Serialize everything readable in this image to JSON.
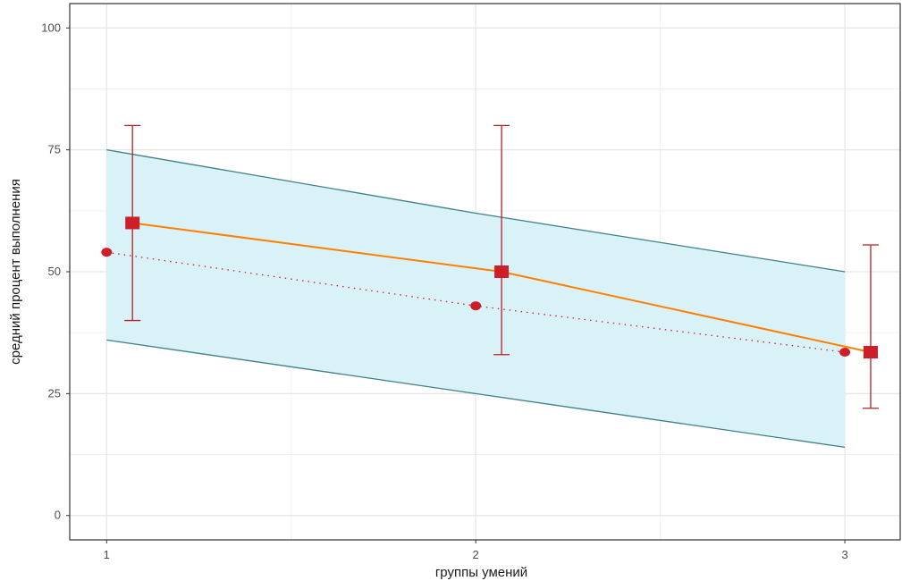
{
  "chart_data": {
    "type": "line",
    "title": "",
    "xlabel": "группы умений",
    "ylabel": "средний процент выполнения",
    "x": [
      1,
      2,
      3
    ],
    "xlim": [
      0.9,
      3.15
    ],
    "ylim": [
      -5,
      105
    ],
    "y_ticks": [
      0,
      25,
      50,
      75,
      100
    ],
    "x_ticks": [
      1,
      2,
      3
    ],
    "grid": true,
    "band": {
      "x": [
        1,
        2,
        3
      ],
      "lower": [
        36,
        25,
        14
      ],
      "upper": [
        75,
        62,
        50
      ],
      "fill": "#d9f2f8",
      "stroke": "#3f7f86"
    },
    "series": [
      {
        "values": [
          54,
          43,
          33.5
        ],
        "style": "dotted",
        "marker": "circle",
        "color": "#cc1f2a"
      },
      {
        "x": [
          1.07,
          2.07,
          3.07
        ],
        "values": [
          60,
          50,
          33.5
        ],
        "style": "solid",
        "marker": "square",
        "color": "#ff7f00",
        "error_low": [
          40,
          33,
          22
        ],
        "error_high": [
          80,
          80,
          55.5
        ],
        "error_color": "#b22222"
      }
    ],
    "colors": {
      "marker": "#cc1f2a",
      "line": "#ff7f00",
      "grid": "#e6e6e6",
      "frame": "#333333"
    }
  }
}
